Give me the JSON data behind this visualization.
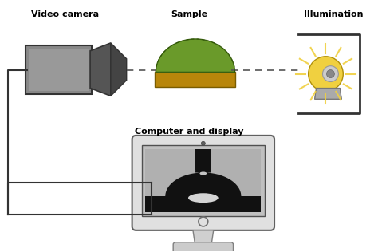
{
  "bg_color": "#ffffff",
  "title_camera": "Video camera",
  "title_sample": "Sample",
  "title_illumination": "Illumination",
  "title_computer": "Computer and display",
  "cam_color_body": "#888888",
  "cam_color_dark": "#444444",
  "sample_green": "#6a9a2a",
  "sample_tan": "#b8860b",
  "illum_yellow": "#f0d040",
  "illum_gray": "#909090",
  "computer_body": "#e0e0e0",
  "screen_gray": "#b8b8b8",
  "drop_black": "#0a0a0a"
}
